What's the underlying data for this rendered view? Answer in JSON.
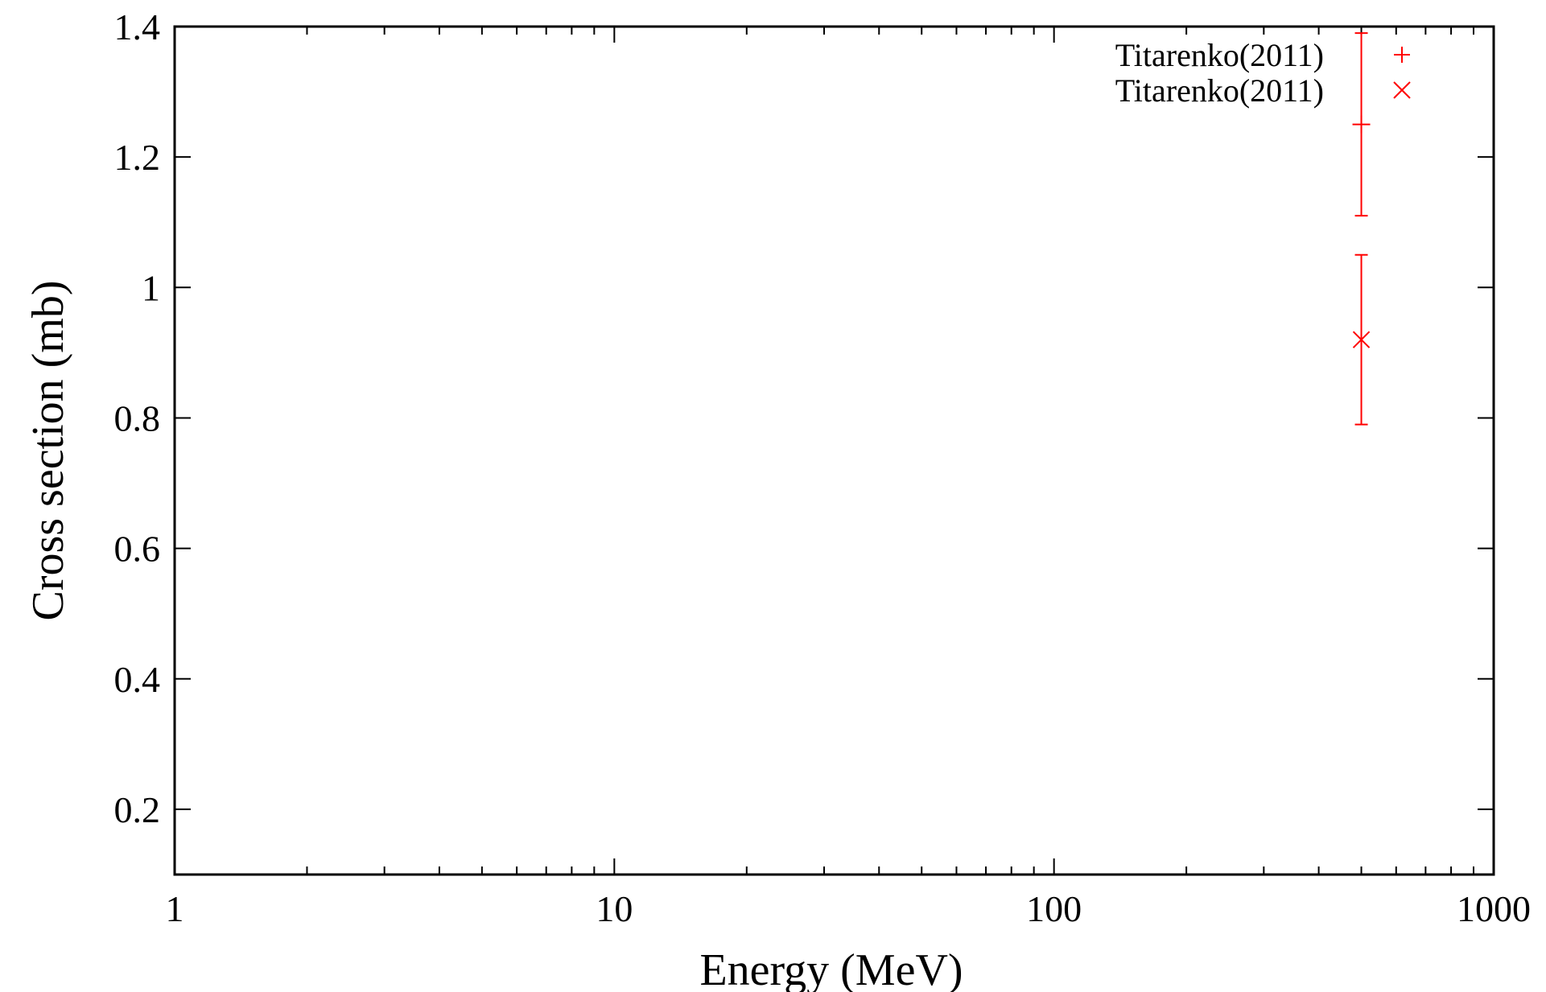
{
  "chart_data": {
    "type": "scatter",
    "title": "",
    "xlabel": "Energy (MeV)",
    "ylabel": "Cross section (mb)",
    "xscale": "log",
    "xlim": [
      1,
      1000
    ],
    "ylim": [
      0.1,
      1.4
    ],
    "x_ticks": [
      1,
      10,
      100,
      1000
    ],
    "x_tick_labels": [
      "1",
      "10",
      "100",
      "1000"
    ],
    "y_ticks": [
      0.2,
      0.4,
      0.6,
      0.8,
      1.0,
      1.2,
      1.4
    ],
    "y_tick_labels": [
      "0.2",
      "0.4",
      "0.6",
      "0.8",
      "1",
      "1.2",
      "1.4"
    ],
    "grid": false,
    "legend_position": "top-right",
    "series": [
      {
        "name": "Titarenko(2011)",
        "marker": "plus",
        "color": "#ff0000",
        "points": [
          {
            "x": 500,
            "y": 1.25,
            "yerr_low": 1.11,
            "yerr_high": 1.39
          }
        ]
      },
      {
        "name": "Titarenko(2011)",
        "marker": "cross",
        "color": "#ff0000",
        "points": [
          {
            "x": 500,
            "y": 0.92,
            "yerr_low": 0.79,
            "yerr_high": 1.05
          }
        ]
      }
    ]
  }
}
